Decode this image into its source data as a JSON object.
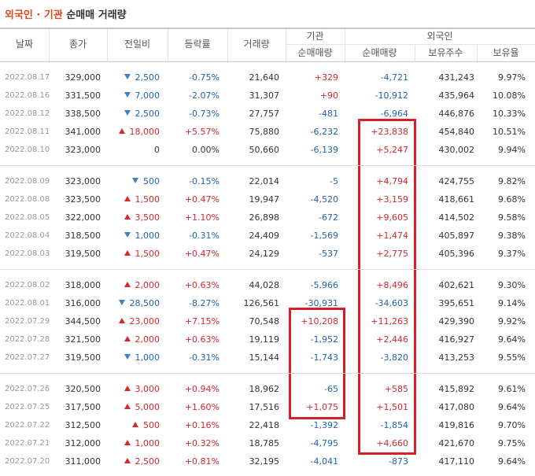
{
  "title_highlight": "외국인 · 기관",
  "title_rest": "순매매 거래량",
  "headers": {
    "date": "날짜",
    "close": "종가",
    "change": "전일비",
    "rate": "등락률",
    "volume": "거래량",
    "institution": "기관",
    "foreign": "외국인",
    "inst_net": "순매매량",
    "foreign_net": "순매매량",
    "holdings": "보유주수",
    "ratio": "보유율"
  },
  "rows": [
    [
      "2022.08.17",
      "329,000",
      "2,500",
      "-0.75%",
      "21,640",
      "+329",
      "-4,721",
      "431,243",
      "9.97%"
    ],
    [
      "2022.08.16",
      "331,500",
      "7,000",
      "-2.07%",
      "31,307",
      "+90",
      "-10,912",
      "435,964",
      "10.08%"
    ],
    [
      "2022.08.12",
      "338,500",
      "2,500",
      "-0.73%",
      "27,757",
      "-481",
      "-6,964",
      "446,876",
      "10.33%"
    ],
    [
      "2022.08.11",
      "341,000",
      "18,000",
      "+5.57%",
      "75,880",
      "-6,232",
      "+23,838",
      "454,840",
      "10.51%"
    ],
    [
      "2022.08.10",
      "323,000",
      "0",
      "0.00%",
      "50,660",
      "-6,139",
      "+5,247",
      "430,002",
      "9.94%"
    ],
    [
      "2022.08.09",
      "323,000",
      "500",
      "-0.15%",
      "22,014",
      "-5",
      "+4,794",
      "424,755",
      "9.82%"
    ],
    [
      "2022.08.08",
      "323,500",
      "1,500",
      "+0.47%",
      "19,947",
      "-4,520",
      "+3,159",
      "418,661",
      "9.68%"
    ],
    [
      "2022.08.05",
      "322,000",
      "3,500",
      "+1.10%",
      "26,898",
      "-672",
      "+9,605",
      "414,502",
      "9.58%"
    ],
    [
      "2022.08.04",
      "318,500",
      "1,000",
      "-0.31%",
      "24,409",
      "-1,569",
      "+1,474",
      "405,897",
      "9.38%"
    ],
    [
      "2022.08.03",
      "319,500",
      "1,500",
      "+0.47%",
      "24,129",
      "-537",
      "+2,775",
      "405,396",
      "9.37%"
    ],
    [
      "2022.08.02",
      "318,000",
      "2,000",
      "+0.63%",
      "44,028",
      "-5,966",
      "+8,496",
      "402,621",
      "9.30%"
    ],
    [
      "2022.08.01",
      "316,000",
      "28,500",
      "-8.27%",
      "126,561",
      "-30,931",
      "-34,603",
      "395,651",
      "9.14%"
    ],
    [
      "2022.07.29",
      "344,500",
      "23,000",
      "+7.15%",
      "70,548",
      "+10,208",
      "+11,263",
      "429,390",
      "9.92%"
    ],
    [
      "2022.07.28",
      "321,500",
      "2,000",
      "+0.63%",
      "19,119",
      "-1,952",
      "+2,446",
      "416,927",
      "9.64%"
    ],
    [
      "2022.07.27",
      "319,500",
      "1,000",
      "-0.31%",
      "15,144",
      "-1,743",
      "-3,820",
      "413,253",
      "9.55%"
    ],
    [
      "2022.07.26",
      "320,500",
      "3,000",
      "+0.94%",
      "18,962",
      "-65",
      "+585",
      "415,892",
      "9.61%"
    ],
    [
      "2022.07.25",
      "317,500",
      "5,000",
      "+1.60%",
      "17,516",
      "+1,075",
      "+1,501",
      "417,080",
      "9.64%"
    ],
    [
      "2022.07.22",
      "312,500",
      "500",
      "+0.16%",
      "22,418",
      "-1,392",
      "-1,854",
      "419,816",
      "9.70%"
    ],
    [
      "2022.07.21",
      "312,000",
      "1,000",
      "+0.32%",
      "18,785",
      "-4,795",
      "+4,660",
      "421,670",
      "9.75%"
    ],
    [
      "2022.07.20",
      "311,000",
      "2,500",
      "+0.81%",
      "32,195",
      "-4,041",
      "-873",
      "417,110",
      "9.64%"
    ]
  ],
  "change_direction": [
    "down",
    "down",
    "down",
    "up",
    "none",
    "down",
    "up",
    "up",
    "down",
    "up",
    "up",
    "down",
    "up",
    "up",
    "down",
    "up",
    "up",
    "up",
    "up",
    "up"
  ]
}
